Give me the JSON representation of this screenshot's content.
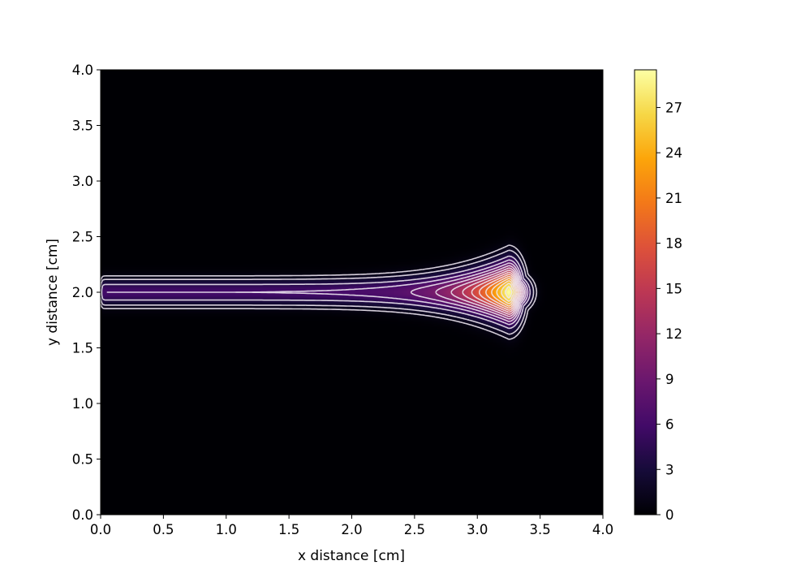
{
  "chart_data": {
    "type": "heatmap",
    "title": "",
    "xlabel": "x distance [cm]",
    "ylabel": "y distance [cm]",
    "xlim": [
      0.0,
      4.0
    ],
    "ylim": [
      0.0,
      4.0
    ],
    "xticks": [
      "0.0",
      "0.5",
      "1.0",
      "1.5",
      "2.0",
      "2.5",
      "3.0",
      "3.5",
      "4.0"
    ],
    "yticks": [
      "0.0",
      "0.5",
      "1.0",
      "1.5",
      "2.0",
      "2.5",
      "3.0",
      "3.5",
      "4.0"
    ],
    "colormap": "inferno",
    "colorbar": {
      "range": [
        0,
        29.5
      ],
      "ticks": [
        "0",
        "3",
        "6",
        "9",
        "12",
        "15",
        "18",
        "21",
        "24",
        "27"
      ]
    },
    "field": {
      "description_values": "peak value ~29.5 at (x=3.25, y=2.0); ridge along y=2.0 from x=0 to x=3.4",
      "peak": {
        "x": 3.25,
        "y": 2.0,
        "value": 29.5
      },
      "ridge_y": 2.0,
      "ridge_start_x": 0.0,
      "ridge_end_x": 3.4,
      "ridge_min_value": 6.0
    },
    "contour_levels": [
      1,
      2,
      4,
      6,
      8,
      10,
      12,
      14,
      16,
      18,
      20,
      22,
      24,
      26,
      28
    ],
    "grid": false,
    "legend": "colorbar-right"
  }
}
